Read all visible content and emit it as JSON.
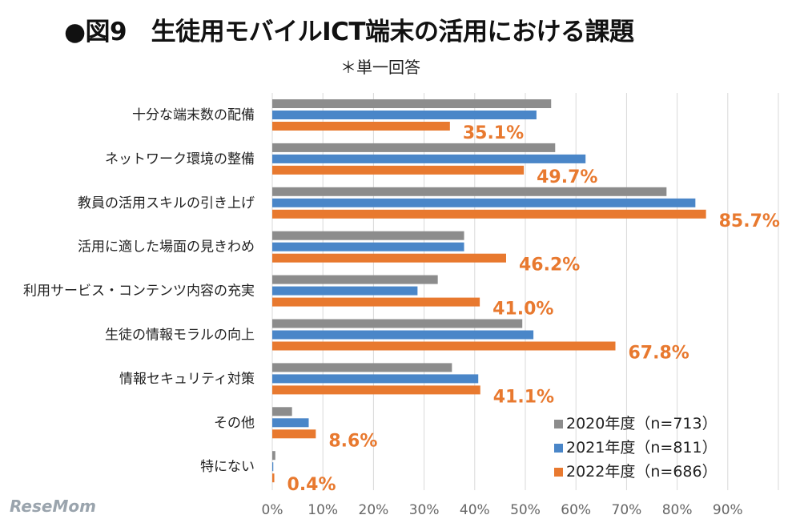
{
  "chart_data": {
    "type": "bar",
    "orientation": "horizontal",
    "title": "●図9　生徒用モバイルICT端末の活用における課題",
    "subtitle": "＊単一回答",
    "categories": [
      "十分な端末数の配備",
      "ネットワーク環境の整備",
      "教員の活用スキルの引き上げ",
      "活用に適した場面の見きわめ",
      "利用サービス・コンテンツ内容の充実",
      "生徒の情報モラルの向上",
      "情報セキュリティ対策",
      "その他",
      "特にない"
    ],
    "series": [
      {
        "name": "2020年度（n=713）",
        "color": "#8c8c8c",
        "values": [
          55.1,
          55.9,
          77.9,
          37.9,
          32.7,
          49.4,
          35.5,
          3.9,
          0.6
        ]
      },
      {
        "name": "2021年度（n=811）",
        "color": "#4a86c8",
        "values": [
          52.2,
          61.9,
          83.6,
          37.9,
          28.7,
          51.6,
          40.7,
          7.2,
          0.2
        ]
      },
      {
        "name": "2022年度（n=686）",
        "color": "#e8792f",
        "values": [
          35.1,
          49.7,
          85.7,
          46.2,
          41.0,
          67.8,
          41.1,
          8.6,
          0.4
        ]
      }
    ],
    "data_labels": [
      "35.1%",
      "49.7%",
      "85.7%",
      "46.2%",
      "41.0%",
      "67.8%",
      "41.1%",
      "8.6%",
      "0.4%"
    ],
    "xticks": [
      "0%",
      "10%",
      "20%",
      "30%",
      "40%",
      "50%",
      "60%",
      "70%",
      "80%",
      "90%"
    ],
    "xlim": [
      0,
      100
    ],
    "grid": true,
    "legend": "bottom-right"
  },
  "watermark": "ReseMom"
}
